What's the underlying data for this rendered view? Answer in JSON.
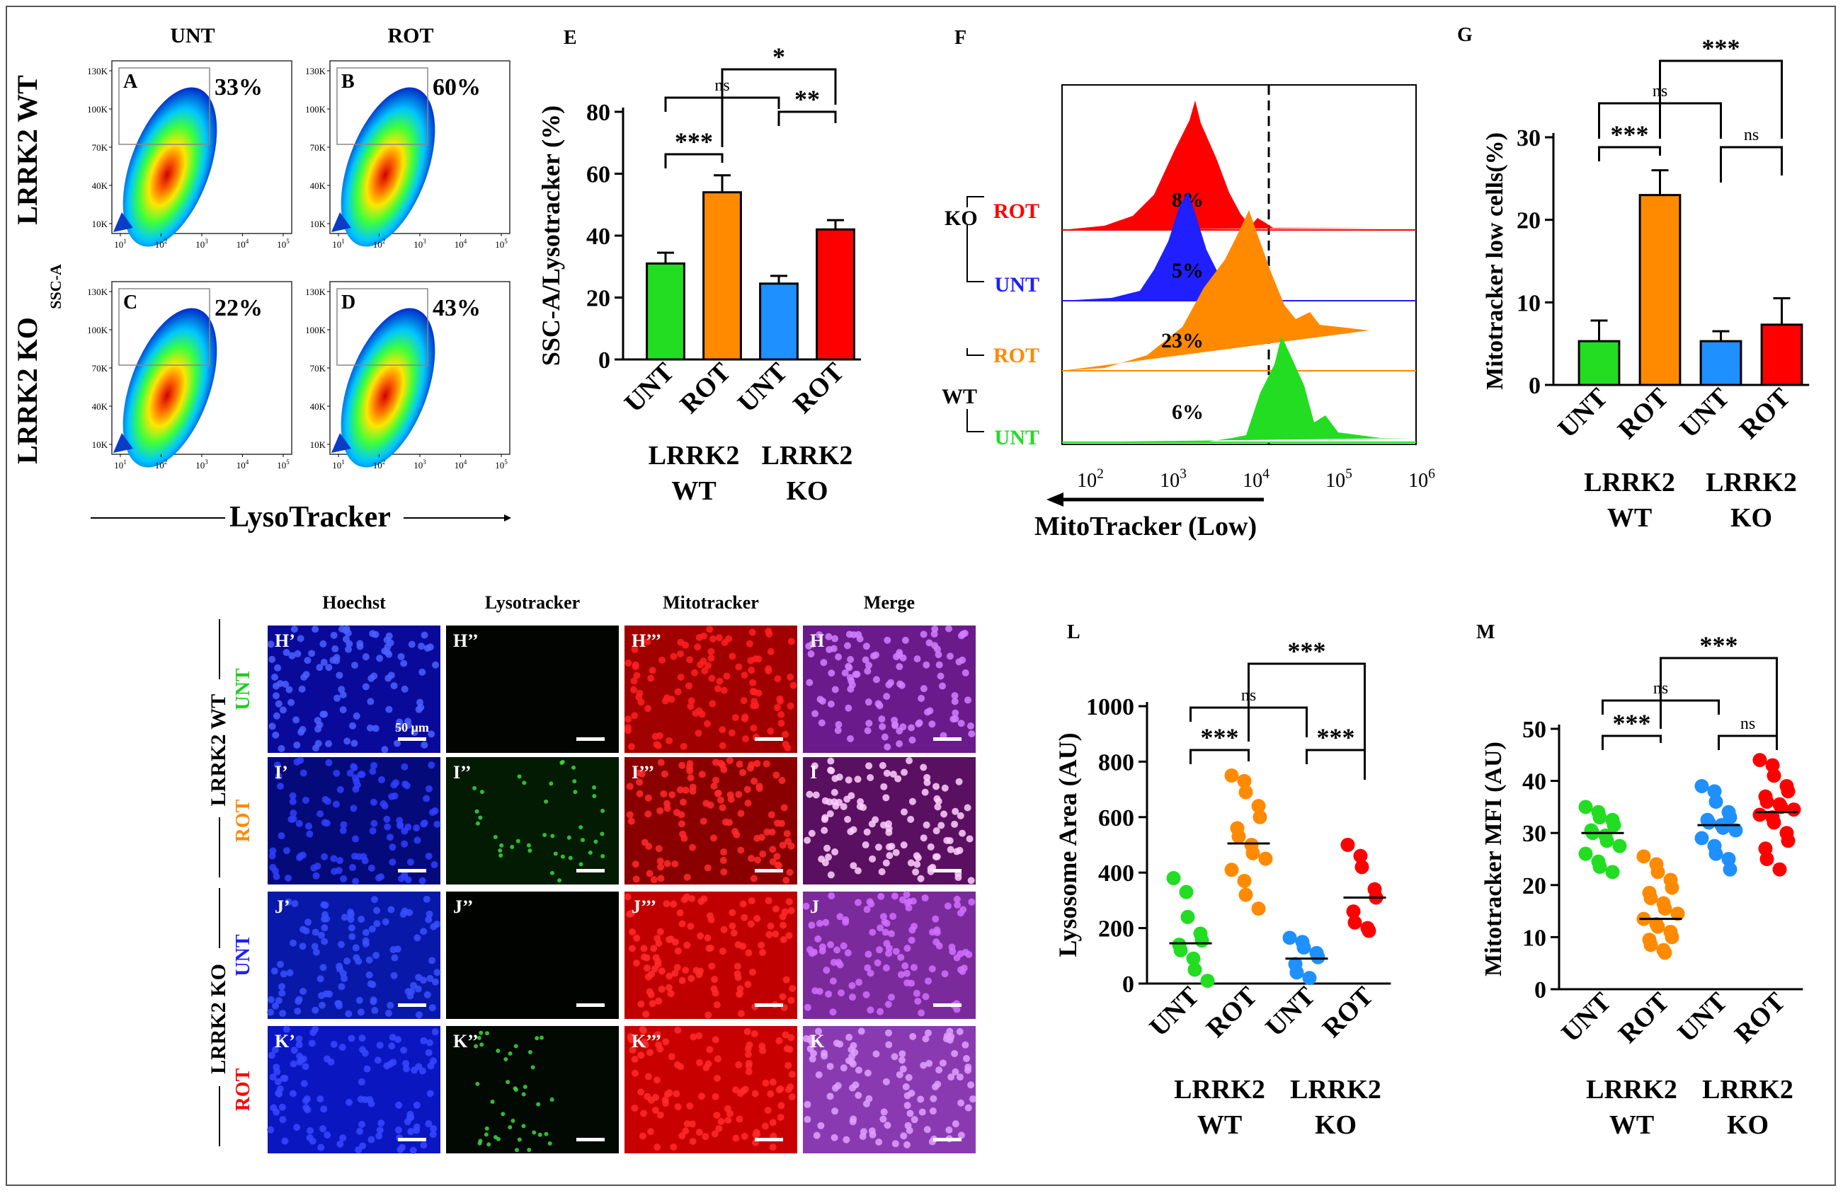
{
  "panelA": {
    "col_labels": [
      "UNT",
      "ROT"
    ],
    "row_labels": [
      "LRRK2 WT",
      "LRRK2 KO"
    ],
    "y_axis": "SSC-A",
    "x_axis": "LysoTracker",
    "y_ticks": [
      "130K",
      "100K",
      "70K",
      "40K",
      "10K"
    ],
    "x_ticks": [
      "10",
      "10",
      "10",
      "10",
      "10"
    ],
    "x_tick_exps": [
      "1",
      "2",
      "3",
      "4",
      "5"
    ],
    "plots": [
      {
        "letter": "A",
        "percent": "33%"
      },
      {
        "letter": "B",
        "percent": "60%"
      },
      {
        "letter": "C",
        "percent": "22%"
      },
      {
        "letter": "D",
        "percent": "43%"
      }
    ]
  },
  "panelF": {
    "letter": "F",
    "x_axis": "MitoTracker (Low)",
    "x_ticks": [
      "10",
      "10",
      "10",
      "10",
      "10"
    ],
    "x_tick_exps": [
      "2",
      "3",
      "4",
      "5",
      "6"
    ],
    "groups": [
      "KO",
      "WT"
    ],
    "traces": [
      {
        "label": "ROT",
        "percent": "8%",
        "color": "#ff0000"
      },
      {
        "label": "UNT",
        "percent": "5%",
        "color": "#1f1fff"
      },
      {
        "label": "ROT",
        "percent": "23%",
        "color": "#ff8a00"
      },
      {
        "label": "UNT",
        "percent": "6%",
        "color": "#22dd22"
      }
    ]
  },
  "panelH": {
    "col_labels": [
      "Hoechst",
      "Lysotracker",
      "Mitotracker",
      "Merge"
    ],
    "group_labels": [
      "LRRK2 WT",
      "LRRK2 KO"
    ],
    "row_labels": [
      "UNT",
      "ROT",
      "UNT",
      "ROT"
    ],
    "row_colors": [
      "#22cc22",
      "#ff8a00",
      "#1f1fff",
      "#ff0000"
    ],
    "scale_label": "50 μm",
    "cells": [
      [
        "H’",
        "H’’",
        "H’’’",
        "H"
      ],
      [
        "I’",
        "I’’",
        "I’’’",
        "I"
      ],
      [
        "J’",
        "J’’",
        "J’’’",
        "J"
      ],
      [
        "K’",
        "K’’",
        "K’’’",
        "K"
      ]
    ]
  },
  "chart_data": [
    {
      "id": "E",
      "type": "bar",
      "ylabel": "SSC-A/Lysotracker (%)",
      "categories": [
        "UNT",
        "ROT",
        "UNT",
        "ROT"
      ],
      "groups": [
        "LRRK2\nWT",
        "LRRK2\nKO"
      ],
      "values": [
        31,
        54,
        24.5,
        42
      ],
      "errors": [
        3.5,
        5.5,
        2.5,
        3
      ],
      "colors": [
        "#22dd22",
        "#ff8a00",
        "#1e90ff",
        "#ff0000"
      ],
      "ylim": [
        0,
        80
      ],
      "yticks": [
        0,
        20,
        40,
        60,
        80
      ],
      "brackets": [
        {
          "from": 0,
          "to": 1,
          "label": "***"
        },
        {
          "from": 2,
          "to": 3,
          "label": "**"
        },
        {
          "from": 0,
          "to": 2,
          "label": "ns"
        },
        {
          "from": 1,
          "to": 3,
          "label": "*"
        }
      ]
    },
    {
      "id": "G",
      "type": "bar",
      "ylabel": "Mitotracker low cells(%)",
      "categories": [
        "UNT",
        "ROT",
        "UNT",
        "ROT"
      ],
      "groups": [
        "LRRK2\nWT",
        "LRRK2\nKO"
      ],
      "values": [
        5.3,
        23,
        5.3,
        7.3
      ],
      "errors": [
        2.5,
        3,
        1.2,
        3.2
      ],
      "colors": [
        "#22dd22",
        "#ff8a00",
        "#1e90ff",
        "#ff0000"
      ],
      "ylim": [
        0,
        30
      ],
      "yticks": [
        0,
        10,
        20,
        30
      ],
      "brackets": [
        {
          "from": 0,
          "to": 1,
          "label": "***"
        },
        {
          "from": 2,
          "to": 3,
          "label": "ns"
        },
        {
          "from": 0,
          "to": 2,
          "label": "ns"
        },
        {
          "from": 1,
          "to": 3,
          "label": "***"
        }
      ]
    },
    {
      "id": "L",
      "type": "scatter",
      "ylabel": "Lysosome Area (AU)",
      "categories": [
        "UNT",
        "ROT",
        "UNT",
        "ROT"
      ],
      "groups": [
        "LRRK2\nWT",
        "LRRK2\nKO"
      ],
      "colors": [
        "#22dd22",
        "#ff8a00",
        "#1e90ff",
        "#ff0000"
      ],
      "ylim": [
        0,
        1000
      ],
      "yticks": [
        0,
        200,
        400,
        600,
        800,
        1000
      ],
      "medians": [
        145,
        505,
        90,
        310
      ],
      "points": [
        [
          380,
          330,
          240,
          180,
          155,
          140,
          120,
          90,
          50,
          10
        ],
        [
          750,
          730,
          690,
          640,
          600,
          560,
          530,
          500,
          470,
          450,
          410,
          370,
          320,
          270
        ],
        [
          165,
          150,
          130,
          110,
          95,
          70,
          40,
          20
        ],
        [
          500,
          460,
          420,
          340,
          310,
          260,
          220,
          200,
          190
        ]
      ],
      "brackets": [
        {
          "from": 0,
          "to": 1,
          "label": "***"
        },
        {
          "from": 2,
          "to": 3,
          "label": "***"
        },
        {
          "from": 0,
          "to": 2,
          "label": "ns"
        },
        {
          "from": 1,
          "to": 3,
          "label": "***"
        }
      ]
    },
    {
      "id": "M",
      "type": "scatter",
      "ylabel": "Mitotracker MFI (AU)",
      "categories": [
        "UNT",
        "ROT",
        "UNT",
        "ROT"
      ],
      "groups": [
        "LRRK2\nWT",
        "LRRK2\nKO"
      ],
      "colors": [
        "#22dd22",
        "#ff8a00",
        "#1e90ff",
        "#ff0000"
      ],
      "ylim": [
        0,
        50
      ],
      "yticks": [
        0,
        10,
        20,
        30,
        40,
        50
      ],
      "medians": [
        30,
        13.5,
        31.5,
        34
      ],
      "points": [
        [
          35,
          34,
          33,
          32.5,
          31.5,
          30.5,
          30,
          29.5,
          28.5,
          27.5,
          26,
          24.5,
          23.5,
          22.5
        ],
        [
          25.5,
          24,
          22.5,
          21,
          19.5,
          18.5,
          17.5,
          16.5,
          15.5,
          14.5,
          13.5,
          12.5,
          12,
          11,
          10,
          9.5,
          8.5,
          7.5,
          7
        ],
        [
          39,
          38,
          36,
          34,
          33,
          32.5,
          32,
          31.5,
          31,
          30.5,
          29,
          27.5,
          26,
          25,
          23
        ],
        [
          44,
          43,
          41,
          39,
          38,
          37,
          36,
          35.5,
          35,
          34.5,
          33.5,
          33,
          32,
          30,
          28.5,
          27,
          25,
          23
        ]
      ],
      "brackets": [
        {
          "from": 0,
          "to": 1,
          "label": "***"
        },
        {
          "from": 2,
          "to": 3,
          "label": "ns"
        },
        {
          "from": 0,
          "to": 2,
          "label": "ns"
        },
        {
          "from": 1,
          "to": 3,
          "label": "***"
        }
      ]
    }
  ]
}
